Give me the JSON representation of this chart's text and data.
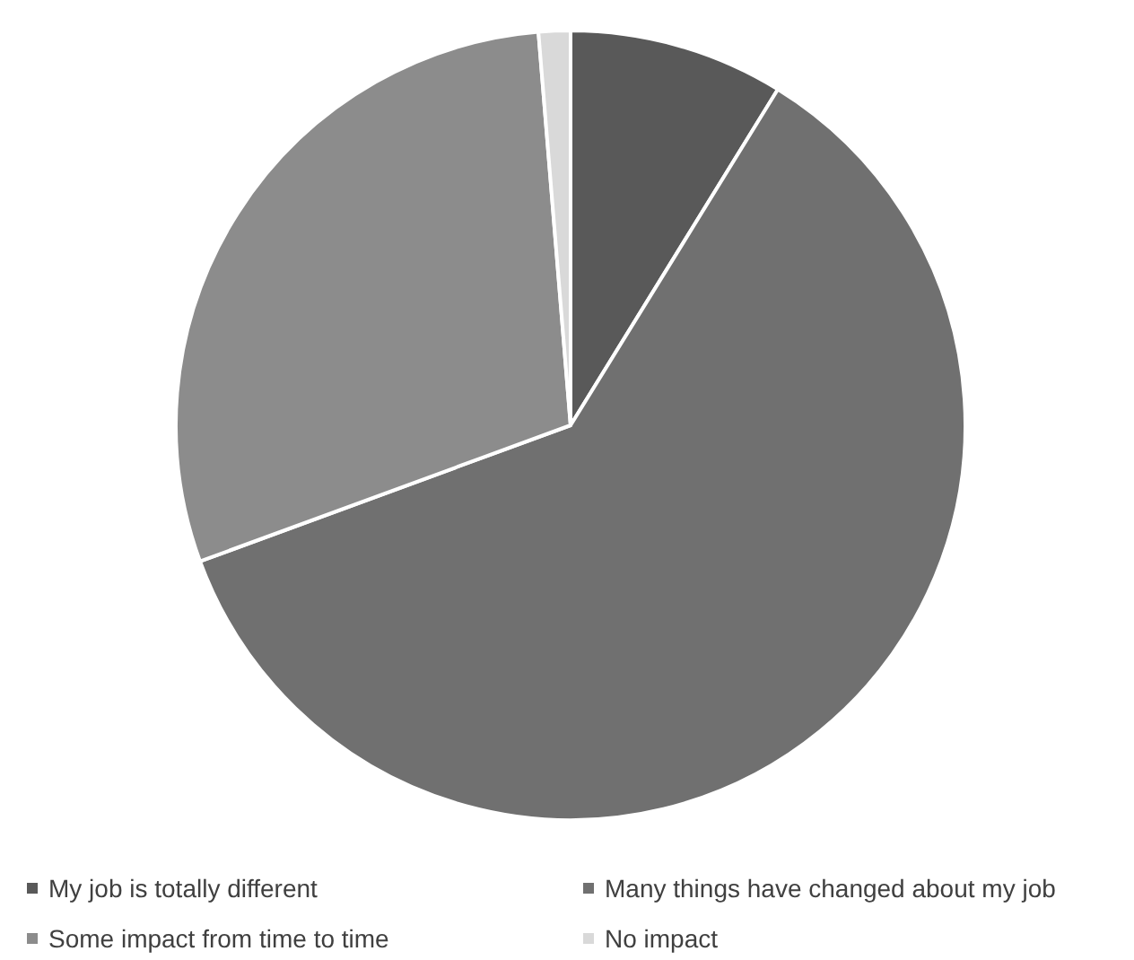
{
  "chart_data": {
    "type": "pie",
    "categories": [
      "My job is totally different",
      "Many things have changed about my job",
      "Some impact from time to time",
      "No impact"
    ],
    "values": [
      8.8,
      60.6,
      29.3,
      1.3
    ],
    "colors": [
      "#595959",
      "#707070",
      "#8c8c8c",
      "#d9d9d9"
    ],
    "legend": "bottom"
  }
}
